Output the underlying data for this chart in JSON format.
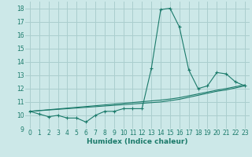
{
  "x_values": [
    0,
    1,
    2,
    3,
    4,
    5,
    6,
    7,
    8,
    9,
    10,
    11,
    12,
    13,
    14,
    15,
    16,
    17,
    18,
    19,
    20,
    21,
    22,
    23
  ],
  "y_main": [
    10.3,
    10.1,
    9.9,
    10.0,
    9.8,
    9.8,
    9.5,
    10.0,
    10.3,
    10.3,
    10.5,
    10.5,
    10.5,
    13.5,
    17.9,
    18.0,
    16.6,
    13.4,
    12.0,
    12.2,
    13.2,
    13.1,
    12.5,
    12.2
  ],
  "y_trend1": [
    10.3,
    10.35,
    10.4,
    10.45,
    10.5,
    10.55,
    10.6,
    10.65,
    10.7,
    10.75,
    10.8,
    10.85,
    10.9,
    10.95,
    11.0,
    11.1,
    11.2,
    11.35,
    11.5,
    11.65,
    11.8,
    11.9,
    12.05,
    12.2
  ],
  "y_trend2": [
    10.3,
    10.36,
    10.42,
    10.48,
    10.54,
    10.6,
    10.66,
    10.72,
    10.78,
    10.84,
    10.9,
    10.96,
    11.02,
    11.08,
    11.14,
    11.22,
    11.32,
    11.46,
    11.6,
    11.74,
    11.88,
    12.0,
    12.14,
    12.28
  ],
  "line_color": "#1a7a6a",
  "bg_color": "#cce8e8",
  "grid_color": "#aacece",
  "xlabel": "Humidex (Indice chaleur)",
  "xlim": [
    -0.5,
    23.5
  ],
  "ylim": [
    9.0,
    18.5
  ],
  "yticks": [
    9,
    10,
    11,
    12,
    13,
    14,
    15,
    16,
    17,
    18
  ],
  "xticks": [
    0,
    1,
    2,
    3,
    4,
    5,
    6,
    7,
    8,
    9,
    10,
    11,
    12,
    13,
    14,
    15,
    16,
    17,
    18,
    19,
    20,
    21,
    22,
    23
  ]
}
